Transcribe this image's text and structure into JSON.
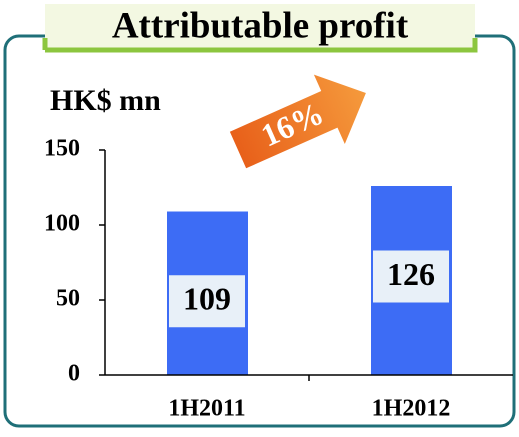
{
  "chart_data": {
    "type": "bar",
    "title": "Attributable profit",
    "y_axis_label": "HK$ mn",
    "annotation": "16%",
    "categories": [
      "1H2011",
      "1H2012"
    ],
    "values": [
      109,
      126
    ],
    "color": "#3d6cf5",
    "ylim": [
      0,
      150
    ],
    "yticks": [
      0,
      50,
      100,
      150
    ],
    "grid": false
  }
}
